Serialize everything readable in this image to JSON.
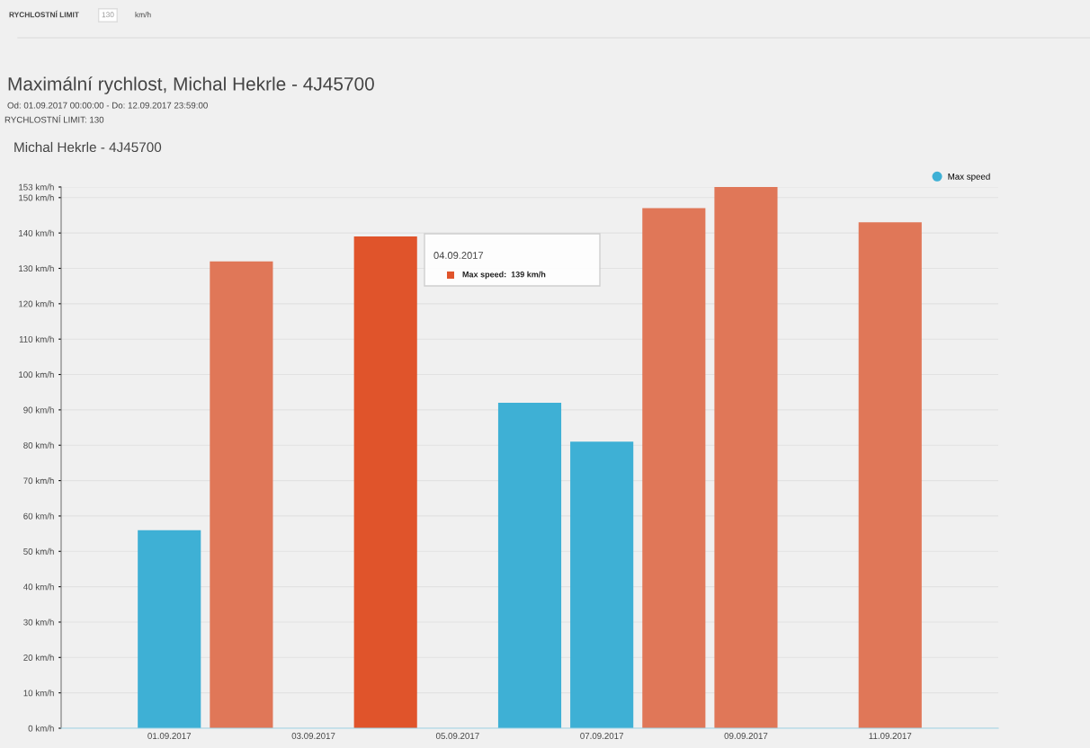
{
  "chart_data": {
    "type": "bar",
    "title": "Maximální rychlost, Michal Hekrle - 4J45700",
    "subtitle": "Od: 01.09.2017 00:00:00 - Do: 12.09.2017 23:59:00",
    "annotations": [
      "RYCHLOSTNÍ LIMIT",
      "130",
      "km/h",
      "RYCHLOSTNÍ LIMIT: 130",
      "Michal Hekrle - 4J45700",
      "04.09.2017",
      "Max speed:  139 km/h"
    ],
    "categories": [
      null,
      "01.09.2017",
      null,
      "03.09.2017",
      null,
      "05.09.2017",
      null,
      "07.09.2017",
      null,
      "09.09.2017",
      null,
      "11.09.2017",
      null
    ],
    "series": [
      {
        "name": "Max speed",
        "color": "#3eb0d5",
        "values": [
          0,
          56,
          132,
          0,
          139,
          0,
          92,
          81,
          147,
          153,
          0,
          143,
          0
        ],
        "colors": [
          "#3eb0d5",
          "#3eb0d5",
          "#e07758",
          "#3eb0d5",
          "#e0542b",
          "#3eb0d5",
          "#3eb0d5",
          "#3eb0d5",
          "#e07758",
          "#e07758",
          "#3eb0d5",
          "#e07758",
          "#3eb0d5"
        ]
      }
    ],
    "ylim": [
      0,
      153
    ],
    "yticks": [
      {
        "value": 0,
        "label": "0 km/h"
      },
      {
        "value": 10,
        "label": "10 km/h"
      },
      {
        "value": 20,
        "label": "20 km/h"
      },
      {
        "value": 30,
        "label": "30 km/h"
      },
      {
        "value": 40,
        "label": "40 km/h"
      },
      {
        "value": 50,
        "label": "50 km/h"
      },
      {
        "value": 60,
        "label": "60 km/h"
      },
      {
        "value": 70,
        "label": "70 km/h"
      },
      {
        "value": 80,
        "label": "80 km/h"
      },
      {
        "value": 90,
        "label": "90 km/h"
      },
      {
        "value": 100,
        "label": "100 km/h"
      },
      {
        "value": 110,
        "label": "110 km/h"
      },
      {
        "value": 120,
        "label": "120 km/h"
      },
      {
        "value": 130,
        "label": "130 km/h"
      },
      {
        "value": 140,
        "label": "140 km/h"
      },
      {
        "value": 150,
        "label": "150 km/h"
      },
      {
        "value": 153,
        "label": "153 km/h"
      }
    ],
    "grid": "y",
    "legend": "top right"
  }
}
